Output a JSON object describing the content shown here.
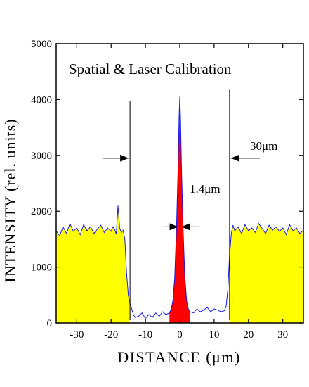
{
  "chart_data": {
    "type": "area",
    "title": "Spatial & Laser Calibration",
    "xlabel": "DISTANCE   (μm)",
    "ylabel": "INTENSITY (rel. units)",
    "xlim": [
      -36,
      36
    ],
    "ylim": [
      0,
      5000
    ],
    "x_ticks": [
      -30,
      -20,
      -10,
      0,
      10,
      20,
      30
    ],
    "x_tick_labels": [
      "-30",
      "-20",
      "-10",
      "0",
      "10",
      "20",
      "30"
    ],
    "y_ticks": [
      0,
      1000,
      2000,
      3000,
      4000,
      5000
    ],
    "y_tick_labels": [
      "0",
      "1000",
      "2000",
      "3000",
      "4000",
      "5000"
    ],
    "grid": false,
    "colors": {
      "trace": "#1a1ae6",
      "plateau_fill": "#ffff00",
      "peak_fill": "#ff0000",
      "axes": "#000000"
    },
    "series": [
      {
        "x": [
          -36,
          -35,
          -34,
          -33,
          -32,
          -31,
          -30,
          -29,
          -28,
          -27,
          -26,
          -25,
          -24,
          -23,
          -22,
          -21,
          -20,
          -19.5,
          -19,
          -18.5,
          -18,
          -17.5,
          -17,
          -16.5,
          -16,
          -15.5,
          -15,
          -14.5,
          -14,
          -13.5,
          -13,
          -12,
          -11,
          -10,
          -9,
          -8,
          -7,
          -6,
          -5,
          -4,
          -3,
          -2.5,
          -2,
          -1.5,
          -1,
          -0.5,
          -0.2,
          0,
          0.2,
          0.5,
          1,
          1.5,
          2,
          2.5,
          3,
          4,
          5,
          6,
          7,
          8,
          9,
          10,
          11,
          12,
          13,
          13.5,
          14,
          14.5,
          15,
          15.5,
          16,
          17,
          18,
          19,
          20,
          21,
          22,
          23,
          24,
          25,
          26,
          27,
          28,
          29,
          30,
          31,
          32,
          33,
          34,
          35,
          36
        ],
        "y": [
          1650,
          1560,
          1720,
          1600,
          1780,
          1640,
          1700,
          1580,
          1760,
          1650,
          1720,
          1600,
          1680,
          1750,
          1620,
          1700,
          1640,
          1720,
          1680,
          1590,
          2100,
          1700,
          1620,
          1660,
          1500,
          900,
          500,
          350,
          250,
          150,
          100,
          120,
          180,
          80,
          150,
          100,
          180,
          120,
          200,
          150,
          180,
          250,
          400,
          800,
          1600,
          2800,
          3700,
          4050,
          3700,
          2800,
          1600,
          800,
          400,
          250,
          200,
          180,
          250,
          200,
          230,
          280,
          200,
          250,
          230,
          200,
          220,
          300,
          600,
          1200,
          1600,
          1750,
          1650,
          1720,
          1600,
          1760,
          1650,
          1700,
          1620,
          1780,
          1690,
          1600,
          1750,
          1660,
          1720,
          1640,
          1700,
          1580,
          1760,
          1650,
          1700,
          1600,
          1660
        ]
      }
    ],
    "markers": {
      "plateau_edges": [
        -14.5,
        14.5
      ],
      "peak_fwhm_um": 1.4,
      "edge_width_um": 30
    },
    "annotations": {
      "peak_width": "1.4μm",
      "edge_width": "30μm"
    }
  }
}
